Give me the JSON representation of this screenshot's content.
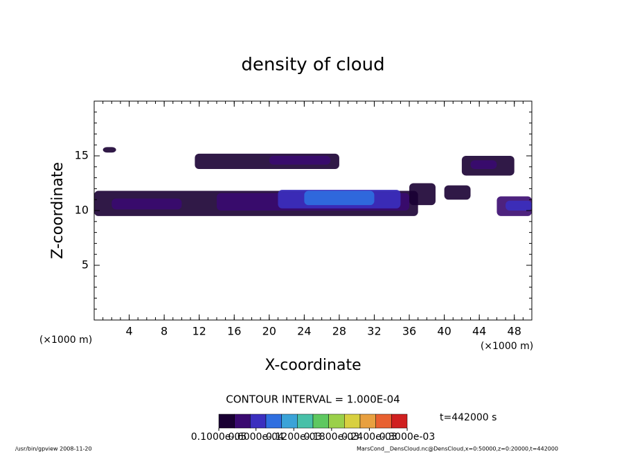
{
  "chart_data": {
    "type": "contour",
    "title": "density of cloud",
    "x_label": "X-coordinate",
    "y_label": "Z-coordinate",
    "x_unit": "(×1000 m)",
    "y_unit": "(×1000 m)",
    "xlim": [
      0,
      50
    ],
    "ylim": [
      0,
      20
    ],
    "xticks": [
      4,
      8,
      12,
      16,
      20,
      24,
      28,
      32,
      36,
      40,
      44,
      48
    ],
    "yticks": [
      5,
      10,
      15
    ],
    "cells": [
      {
        "x": [
          1,
          2.5
        ],
        "z": [
          15.3,
          15.8
        ],
        "value": 2e-05
      },
      {
        "x": [
          11.5,
          28
        ],
        "z": [
          13.8,
          15.2
        ],
        "value": 2e-05
      },
      {
        "x": [
          20,
          27
        ],
        "z": [
          14.2,
          15
        ],
        "value": 3e-05
      },
      {
        "x": [
          42,
          48
        ],
        "z": [
          13.2,
          15
        ],
        "value": 2e-05
      },
      {
        "x": [
          43,
          46
        ],
        "z": [
          13.8,
          14.6
        ],
        "value": 5e-05
      },
      {
        "x": [
          0,
          37
        ],
        "z": [
          9.5,
          11.8
        ],
        "value": 2e-05
      },
      {
        "x": [
          2,
          10
        ],
        "z": [
          10.1,
          11.1
        ],
        "value": 4e-05
      },
      {
        "x": [
          14,
          36
        ],
        "z": [
          10,
          11.6
        ],
        "value": 5e-05
      },
      {
        "x": [
          21,
          35
        ],
        "z": [
          10.2,
          11.9
        ],
        "value": 7e-05
      },
      {
        "x": [
          24,
          32
        ],
        "z": [
          10.5,
          11.8
        ],
        "value": 9e-05
      },
      {
        "x": [
          36,
          39
        ],
        "z": [
          10.5,
          12.5
        ],
        "value": 2e-05
      },
      {
        "x": [
          40,
          43
        ],
        "z": [
          11,
          12.3
        ],
        "value": 2e-05
      },
      {
        "x": [
          46,
          50
        ],
        "z": [
          9.5,
          11.3
        ],
        "value": 3e-05
      },
      {
        "x": [
          47,
          50
        ],
        "z": [
          10,
          10.9
        ],
        "value": 6e-05
      }
    ],
    "colorbar_colors": [
      "#1a0033",
      "#3a0a70",
      "#3b2fbf",
      "#2f6fe0",
      "#3aa3d8",
      "#48c0a8",
      "#5ec860",
      "#9ad04a",
      "#d8d040",
      "#e8a040",
      "#e86030",
      "#d02020"
    ],
    "levels": [
      {
        "value": 1e-06,
        "label": "0.1000e-05"
      },
      {
        "value": 6e-05,
        "label": "0.6000e-04"
      },
      {
        "value": 0.00012,
        "label": "0.1200e-03"
      },
      {
        "value": 0.00018,
        "label": "0.1800e-03"
      },
      {
        "value": 0.00024,
        "label": "0.2400e-03"
      },
      {
        "value": 0.0003,
        "label": "0.3000e-03"
      }
    ],
    "contour_interval": "CONTOUR INTERVAL = 1.000E-04",
    "time_label": "t=442000 s",
    "footer_left": "/usr/bin/gpview   2008-11-20",
    "footer_right": "MarsCond__DensCloud.nc@DensCloud,x=0:50000,z=0:20000,t=442000"
  }
}
